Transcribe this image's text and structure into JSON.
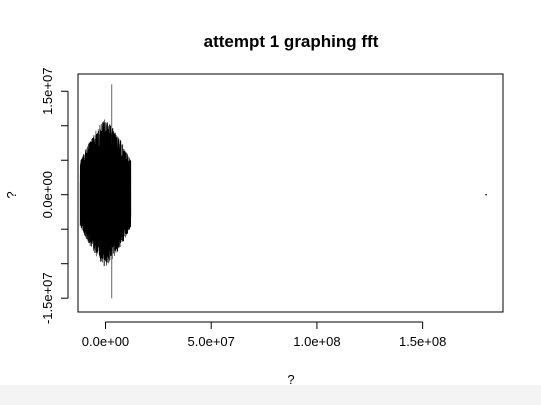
{
  "chart_data": {
    "type": "line",
    "title": "attempt 1 graphing fft",
    "xlabel": "?",
    "ylabel": "?",
    "xlim": [
      -13000000,
      188000000
    ],
    "ylim": [
      -17000000,
      17500000
    ],
    "x_ticks": [
      0,
      50000000,
      100000000,
      150000000
    ],
    "x_tick_labels": [
      "0.0e+00",
      "5.0e+07",
      "1.0e+08",
      "1.5e+08"
    ],
    "y_ticks": [
      -15000000,
      -10000000,
      -5000000,
      0,
      5000000,
      10000000,
      15000000
    ],
    "y_tick_labels": [
      "-1.5e+07",
      "",
      "",
      "0.0e+00",
      "",
      "",
      "1.5e+07"
    ],
    "grid": false,
    "series": [
      {
        "style": "dense-oscillation",
        "x_range": [
          -12000000,
          12000000
        ],
        "y_range": [
          -15000000,
          16000000
        ],
        "extremes": {
          "max": 16000000,
          "min": -15000000,
          "x_at_extremes": 3000000
        }
      },
      {
        "style": "isolated-point",
        "x": 180000000,
        "y": 0
      }
    ],
    "color": "#000000"
  }
}
